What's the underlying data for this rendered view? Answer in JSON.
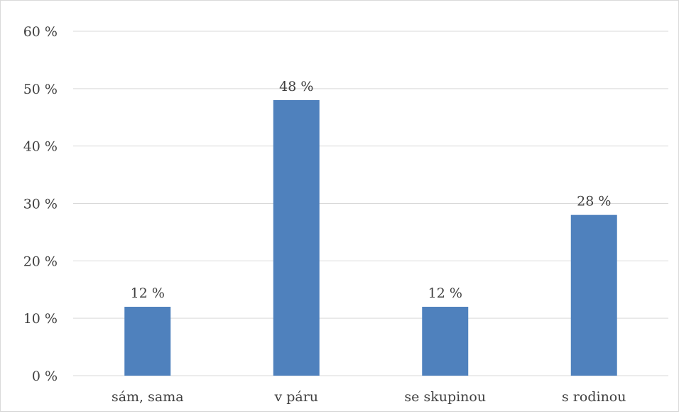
{
  "chart_data": {
    "type": "bar",
    "categories": [
      "sám, sama",
      "v páru",
      "se skupinou",
      "s rodinou"
    ],
    "values": [
      12,
      48,
      12,
      28
    ],
    "data_labels": [
      "12 %",
      "48 %",
      "12 %",
      "28 %"
    ],
    "yticks": [
      0,
      10,
      20,
      30,
      40,
      50,
      60
    ],
    "ytick_labels": [
      "0 %",
      "10 %",
      "20 %",
      "30 %",
      "40 %",
      "50 %",
      "60 %"
    ],
    "ylim": [
      0,
      60
    ],
    "grid": true,
    "legend": "none",
    "bar_color": "#4f81bd",
    "grid_color": "#d9d9d9"
  }
}
